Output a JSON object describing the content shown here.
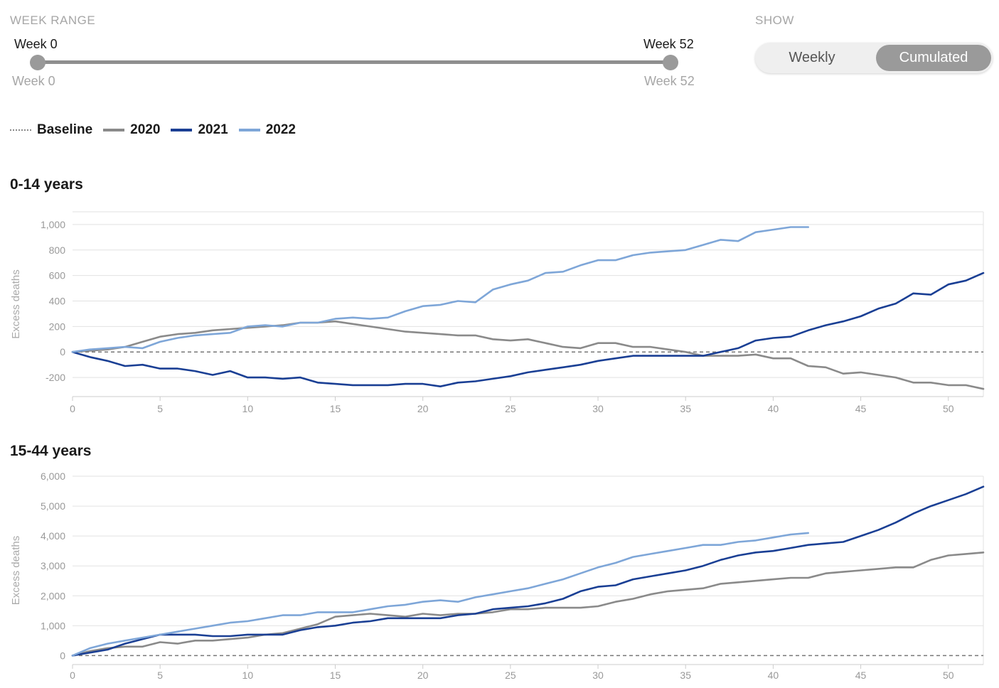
{
  "controls": {
    "range_label": "WEEK RANGE",
    "slider": {
      "min_top": "Week 0",
      "max_top": "Week 52",
      "min_bottom": "Week 0",
      "max_bottom": "Week 52",
      "start_week": 0,
      "end_week": 52
    },
    "show_label": "SHOW",
    "toggle": {
      "weekly": "Weekly",
      "cumulated": "Cumulated",
      "selected": "Cumulated"
    }
  },
  "legend": [
    {
      "label": "Baseline",
      "color": "#888888",
      "style": "dotted"
    },
    {
      "label": "2020",
      "color": "#8a8a8a",
      "style": "solid"
    },
    {
      "label": "2021",
      "color": "#1a3f94",
      "style": "solid"
    },
    {
      "label": "2022",
      "color": "#7ea6d8",
      "style": "solid"
    }
  ],
  "chart_data": [
    {
      "type": "line",
      "title": "0-14 years",
      "ylabel": "Excess deaths",
      "xlabel": "",
      "xlim": [
        0,
        52
      ],
      "ylim": [
        -350,
        1100
      ],
      "xticks": [
        0,
        5,
        10,
        15,
        20,
        25,
        30,
        35,
        40,
        45,
        50
      ],
      "xtick_labels": [
        "0",
        "5",
        "10",
        "15",
        "20",
        "25",
        "30",
        "35",
        "40",
        "45",
        "50"
      ],
      "yticks": [
        -200,
        0,
        200,
        400,
        600,
        800,
        1000
      ],
      "ytick_labels": [
        "-200",
        "0",
        "200",
        "400",
        "600",
        "800",
        "1,000"
      ],
      "baseline": 0,
      "grid": true,
      "series": [
        {
          "name": "2020",
          "color": "#8a8a8a",
          "values": [
            0,
            10,
            20,
            40,
            80,
            120,
            140,
            150,
            170,
            180,
            190,
            200,
            210,
            230,
            230,
            240,
            220,
            200,
            180,
            160,
            150,
            140,
            130,
            130,
            100,
            90,
            100,
            70,
            40,
            30,
            70,
            70,
            40,
            40,
            20,
            0,
            -30,
            -30,
            -30,
            -20,
            -50,
            -50,
            -110,
            -120,
            -170,
            -160,
            -180,
            -200,
            -240,
            -240,
            -260,
            -260,
            -290
          ]
        },
        {
          "name": "2021",
          "color": "#1a3f94",
          "values": [
            0,
            -40,
            -70,
            -110,
            -100,
            -130,
            -130,
            -150,
            -180,
            -150,
            -200,
            -200,
            -210,
            -200,
            -240,
            -250,
            -260,
            -260,
            -260,
            -250,
            -250,
            -270,
            -240,
            -230,
            -210,
            -190,
            -160,
            -140,
            -120,
            -100,
            -70,
            -50,
            -30,
            -30,
            -30,
            -30,
            -30,
            0,
            30,
            90,
            110,
            120,
            170,
            210,
            240,
            280,
            340,
            380,
            460,
            450,
            530,
            560,
            620
          ]
        },
        {
          "name": "2022",
          "color": "#7ea6d8",
          "values": [
            0,
            20,
            30,
            40,
            30,
            80,
            110,
            130,
            140,
            150,
            200,
            210,
            200,
            230,
            230,
            260,
            270,
            260,
            270,
            320,
            360,
            370,
            400,
            390,
            490,
            530,
            560,
            620,
            630,
            680,
            720,
            720,
            760,
            780,
            790,
            800,
            840,
            880,
            870,
            940,
            960,
            980,
            980
          ]
        }
      ]
    },
    {
      "type": "line",
      "title": "15-44 years",
      "ylabel": "Excess deaths",
      "xlabel": "",
      "xlim": [
        0,
        52
      ],
      "ylim": [
        -300,
        6000
      ],
      "xticks": [
        0,
        5,
        10,
        15,
        20,
        25,
        30,
        35,
        40,
        45,
        50
      ],
      "xtick_labels": [
        "0",
        "5",
        "10",
        "15",
        "20",
        "25",
        "30",
        "35",
        "40",
        "45",
        "50"
      ],
      "yticks": [
        0,
        1000,
        2000,
        3000,
        4000,
        5000,
        6000
      ],
      "ytick_labels": [
        "0",
        "1,000",
        "2,000",
        "3,000",
        "4,000",
        "5,000",
        "6,000"
      ],
      "baseline": 0,
      "grid": true,
      "series": [
        {
          "name": "2020",
          "color": "#8a8a8a",
          "values": [
            0,
            150,
            250,
            300,
            300,
            450,
            400,
            500,
            500,
            550,
            600,
            700,
            750,
            900,
            1050,
            1300,
            1350,
            1400,
            1350,
            1300,
            1400,
            1350,
            1400,
            1400,
            1450,
            1550,
            1550,
            1600,
            1600,
            1600,
            1650,
            1800,
            1900,
            2050,
            2150,
            2200,
            2250,
            2400,
            2450,
            2500,
            2550,
            2600,
            2600,
            2750,
            2800,
            2850,
            2900,
            2950,
            2950,
            3200,
            3350,
            3400,
            3450
          ]
        },
        {
          "name": "2021",
          "color": "#1a3f94",
          "values": [
            0,
            100,
            200,
            400,
            550,
            700,
            700,
            700,
            650,
            650,
            700,
            700,
            700,
            850,
            950,
            1000,
            1100,
            1150,
            1250,
            1250,
            1250,
            1250,
            1350,
            1400,
            1550,
            1600,
            1650,
            1750,
            1900,
            2150,
            2300,
            2350,
            2550,
            2650,
            2750,
            2850,
            3000,
            3200,
            3350,
            3450,
            3500,
            3600,
            3700,
            3750,
            3800,
            4000,
            4200,
            4450,
            4750,
            5000,
            5200,
            5400,
            5650
          ]
        },
        {
          "name": "2022",
          "color": "#7ea6d8",
          "values": [
            0,
            250,
            400,
            500,
            600,
            700,
            800,
            900,
            1000,
            1100,
            1150,
            1250,
            1350,
            1350,
            1450,
            1450,
            1450,
            1550,
            1650,
            1700,
            1800,
            1850,
            1800,
            1950,
            2050,
            2150,
            2250,
            2400,
            2550,
            2750,
            2950,
            3100,
            3300,
            3400,
            3500,
            3600,
            3700,
            3700,
            3800,
            3850,
            3950,
            4050,
            4100
          ]
        }
      ]
    }
  ]
}
